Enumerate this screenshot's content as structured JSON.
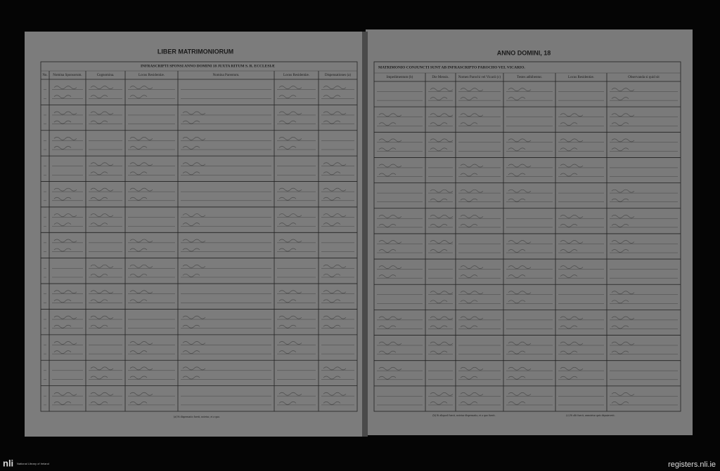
{
  "left_page": {
    "title": "LIBER MATRIMONIORUM",
    "subtitle": "INFRASCRIPTI SPONSI ANNO DOMINI 18      JUXTA RITUM S. R. ECCLESIÆ",
    "columns": [
      "No.",
      "Nomina Sponsorum.",
      "Cognomina.",
      "Locus Residentiæ.",
      "Nomina Parentum.",
      "Locus Residentiæ.",
      "Dispensationes (a)"
    ],
    "footnote": "(a) Si dispensatio fuerit, notetur, et a quo."
  },
  "right_page": {
    "title": "ANNO DOMINI, 18",
    "subtitle": "MATRIMONIO CONJUNCTI SUNT AB INFRASCRIPTO PAROCHO VEL VICARIO.",
    "columns": [
      "Impedimentum (b)",
      "Die Mensis.",
      "Nomen Parochi vel Vicarii (c)",
      "Testes adhibentur.",
      "Locus Residentiæ.",
      "Observanda si quid sit"
    ],
    "footnotes": [
      "(b) Si aliquod fuerit, notetur dispensatio, et a quo fuerit.",
      "(c) Si alii fuerit, annotetur quis deputaverit."
    ]
  },
  "footer": {
    "logo": "nli",
    "logo_caption": "National Library of Ireland",
    "url": "registers.nli.ie"
  }
}
